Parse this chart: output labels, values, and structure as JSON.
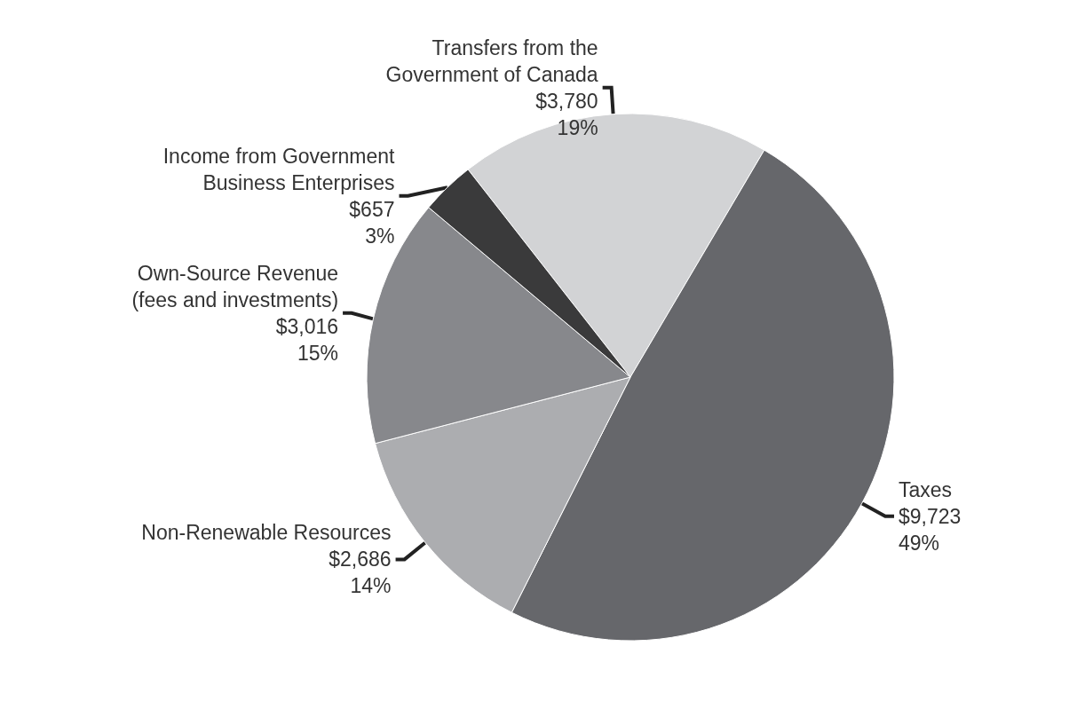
{
  "chart_data": {
    "type": "pie",
    "categories": [
      "Transfers from the\nGovernment of Canada",
      "Taxes",
      "Non-Renewable Resources",
      "Own-Source Revenue\n(fees and investments)",
      "Income from Government\nBusiness Enterprises"
    ],
    "values": [
      3780,
      9723,
      2686,
      3016,
      657
    ],
    "value_labels": [
      "$3,780\n19%",
      "$9,723\n49%",
      "$2,686\n14%",
      "$3,016\n15%",
      "$657\n3%"
    ],
    "colors": [
      "#d2d3d5",
      "#66676b",
      "#acadb0",
      "#87888c",
      "#3a3a3b"
    ]
  }
}
